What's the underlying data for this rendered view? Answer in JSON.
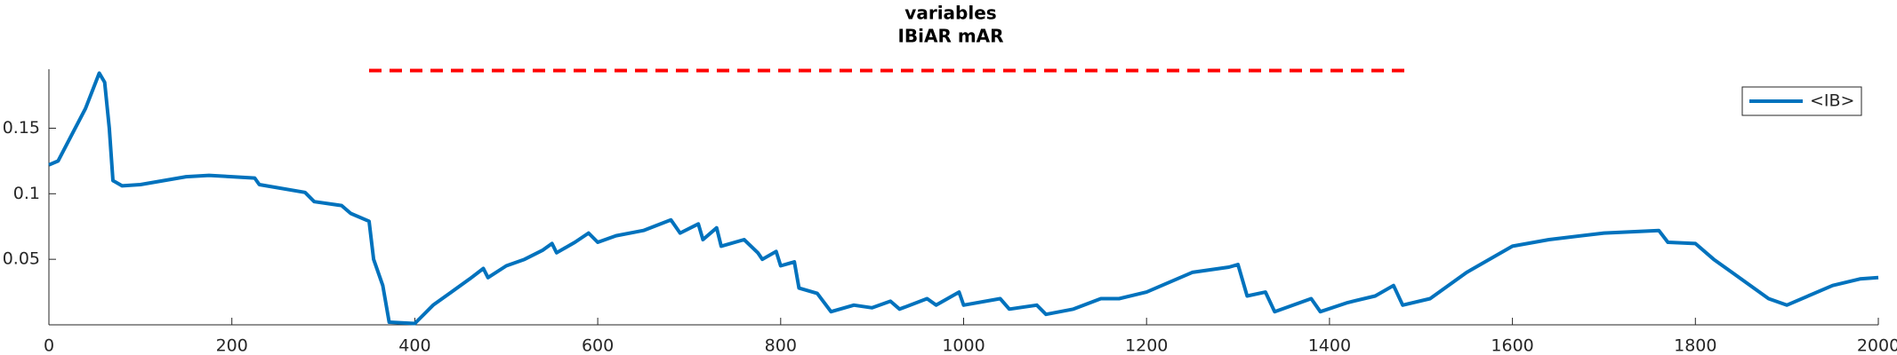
{
  "chart_data": {
    "type": "line",
    "title": [
      "variables",
      "IBiAR mAR"
    ],
    "xlim": [
      0,
      2000
    ],
    "xticks": [
      0,
      200,
      400,
      600,
      800,
      1000,
      1200,
      1400,
      1600,
      1800,
      2000
    ],
    "ylim": [
      0,
      0.195
    ],
    "yticks": [
      0.05,
      0.1,
      0.15
    ],
    "legend": "upper right",
    "series": [
      {
        "name": "<IB>",
        "color": "#0072bd",
        "x": [
          0,
          10,
          25,
          40,
          55,
          61,
          66,
          70,
          80,
          100,
          150,
          175,
          200,
          225,
          230,
          280,
          290,
          320,
          330,
          350,
          355,
          365,
          372,
          400,
          420,
          440,
          460,
          475,
          480,
          500,
          520,
          540,
          550,
          555,
          575,
          590,
          600,
          620,
          650,
          680,
          690,
          710,
          715,
          730,
          735,
          760,
          775,
          780,
          795,
          800,
          815,
          820,
          840,
          855,
          880,
          900,
          920,
          930,
          960,
          970,
          995,
          1000,
          1040,
          1050,
          1080,
          1090,
          1120,
          1150,
          1170,
          1200,
          1250,
          1290,
          1300,
          1310,
          1330,
          1340,
          1380,
          1390,
          1420,
          1450,
          1470,
          1480,
          1510,
          1550,
          1600,
          1640,
          1700,
          1760,
          1770,
          1800,
          1820,
          1840,
          1880,
          1900,
          1950,
          1980,
          2000
        ],
        "values": [
          0.122,
          0.125,
          0.145,
          0.165,
          0.192,
          0.185,
          0.15,
          0.11,
          0.106,
          0.107,
          0.113,
          0.114,
          0.113,
          0.112,
          0.107,
          0.101,
          0.094,
          0.091,
          0.085,
          0.079,
          0.05,
          0.03,
          0.002,
          0.001,
          0.015,
          0.025,
          0.035,
          0.043,
          0.036,
          0.045,
          0.05,
          0.057,
          0.062,
          0.055,
          0.063,
          0.07,
          0.063,
          0.068,
          0.072,
          0.08,
          0.07,
          0.077,
          0.065,
          0.074,
          0.06,
          0.065,
          0.055,
          0.05,
          0.056,
          0.045,
          0.048,
          0.028,
          0.024,
          0.01,
          0.015,
          0.013,
          0.018,
          0.012,
          0.02,
          0.015,
          0.025,
          0.015,
          0.02,
          0.012,
          0.015,
          0.008,
          0.012,
          0.02,
          0.02,
          0.025,
          0.04,
          0.044,
          0.046,
          0.022,
          0.025,
          0.01,
          0.02,
          0.01,
          0.017,
          0.022,
          0.03,
          0.015,
          0.02,
          0.04,
          0.06,
          0.065,
          0.07,
          0.072,
          0.063,
          0.062,
          0.05,
          0.04,
          0.02,
          0.015,
          0.03,
          0.035,
          0.036
        ]
      }
    ],
    "reference_line": {
      "x": [
        350,
        1490
      ],
      "y": 0.194,
      "color": "#ff0000",
      "style": "dashed"
    }
  }
}
